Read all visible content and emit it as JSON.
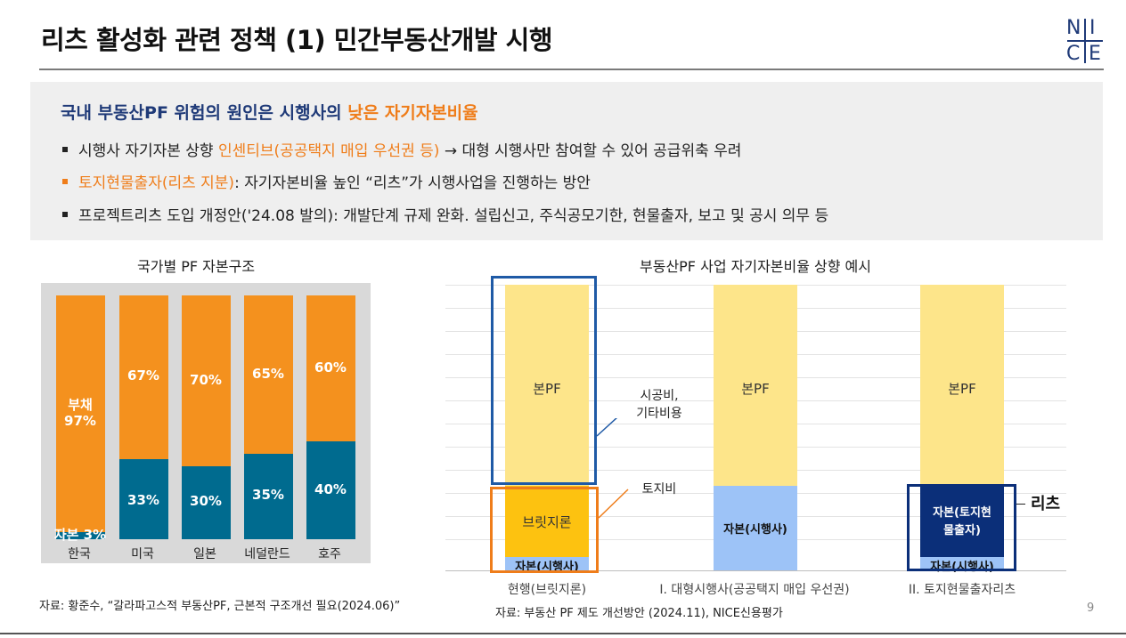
{
  "title": "리츠 활성화 관련 정책 (1) 민간부동산개발 시행",
  "logo": {
    "n": "N",
    "i": "I",
    "c": "C",
    "e": "E"
  },
  "headline": {
    "prefix": "국내 부동산PF 위험의 원인은 시행사의 ",
    "highlight": "낮은 자기자본비율"
  },
  "bullets": [
    {
      "pre": "시행사 자기자본 상향 ",
      "hl": "인센티브(공공택지 매입 우선권 등)",
      "post": " → 대형 시행사만 참여할 수 있어 공급위축 우려"
    },
    {
      "pre": "",
      "hl": "토지현물출자(리츠 지분)",
      "post": ": 자기자본비율 높인 “리츠”가 시행사업을 진행하는 방안"
    },
    {
      "pre": "프로젝트리츠 도입 개정안('24.08 발의): 개발단계 규제 완화. 설립신고, 주식공모기한, 현물출자, 보고 및 공시 의무 등",
      "hl": "",
      "post": ""
    }
  ],
  "left_chart": {
    "title": "국가별 PF 자본구조",
    "debt_label_line1": "부채",
    "equity_label": "자본 3%",
    "categories": [
      "한국",
      "미국",
      "일본",
      "네덜란드",
      "호주"
    ],
    "debt_labels": [
      "97%",
      "67%",
      "70%",
      "65%",
      "60%"
    ],
    "equity_labels": [
      "",
      "33%",
      "30%",
      "35%",
      "40%"
    ]
  },
  "right_chart": {
    "title": "부동산PF 사업 자기자본비율 상향 예시",
    "bar_labels": {
      "main_pf": "본PF",
      "bridge": "브릿지론",
      "equity_dev": "자본(시행사)",
      "equity_land_1": "자본(토지현",
      "equity_land_2": "물출자)"
    },
    "annotations": {
      "construction_1": "시공비,",
      "construction_2": "기타비용",
      "land": "토지비",
      "reits": "리츠"
    },
    "categories": [
      "현행(브릿지론)",
      "I. 대형시행사(공공택지 매입 우선권)",
      "II. 토지현물출자리츠"
    ]
  },
  "chart_data": [
    {
      "type": "bar",
      "title": "국가별 PF 자본구조",
      "categories": [
        "한국",
        "미국",
        "일본",
        "네덜란드",
        "호주"
      ],
      "stacked": true,
      "series": [
        {
          "name": "자본",
          "values": [
            3,
            33,
            30,
            35,
            40
          ],
          "color": "#006b8f"
        },
        {
          "name": "부채",
          "values": [
            97,
            67,
            70,
            65,
            60
          ],
          "color": "#f4911e"
        }
      ],
      "ylim": [
        0,
        100
      ]
    },
    {
      "type": "bar",
      "title": "부동산PF 사업 자기자본비율 상향 예시",
      "categories": [
        "현행(브릿지론)",
        "I. 대형시행사(공공택지 매입 우선권)",
        "II. 토지현물출자리츠"
      ],
      "stacked": true,
      "series": [
        {
          "name": "자본(시행사)",
          "values": [
            5,
            33,
            5
          ]
        },
        {
          "name": "브릿지론",
          "values": [
            28,
            0,
            0
          ]
        },
        {
          "name": "자본(토지현물출자)",
          "values": [
            0,
            0,
            28
          ]
        },
        {
          "name": "본PF",
          "values": [
            67,
            67,
            67
          ]
        }
      ]
    }
  ],
  "sources": {
    "left": "자료: 황준수, “갈라파고스적 부동산PF, 근본적 구조개선 필요(2024.06)”",
    "right": "자료: 부동산 PF 제도 개선방안 (2024.11), NICE신용평가"
  },
  "page_number": "9",
  "colors": {
    "navy": "#1f3a78",
    "orange": "#ef7d1a",
    "teal": "#006b8f"
  }
}
